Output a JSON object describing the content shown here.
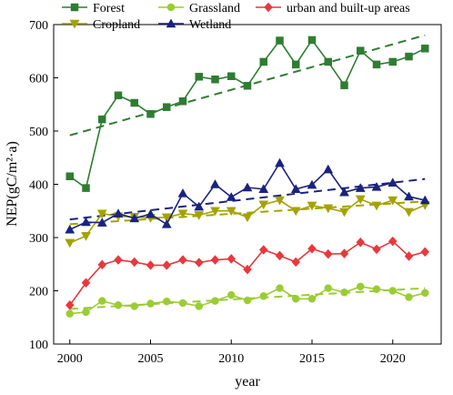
{
  "chart_data": {
    "type": "line",
    "title": "",
    "xlabel": "year",
    "ylabel": "NEP(gC/m²·a)",
    "xlim": [
      1999,
      2023
    ],
    "ylim": [
      100,
      700
    ],
    "xticks": [
      2000,
      2005,
      2010,
      2015,
      2020
    ],
    "yticks": [
      100,
      200,
      300,
      400,
      500,
      600,
      700
    ],
    "legend_position": "top, inside plot area",
    "x": [
      2000,
      2001,
      2002,
      2003,
      2004,
      2005,
      2006,
      2007,
      2008,
      2009,
      2010,
      2011,
      2012,
      2013,
      2014,
      2015,
      2016,
      2017,
      2018,
      2019,
      2020,
      2021,
      2022
    ],
    "series": [
      {
        "name": "Forest",
        "color": "#2e7d32",
        "marker": "square",
        "values": [
          415,
          393,
          522,
          567,
          553,
          532,
          545,
          556,
          602,
          597,
          603,
          585,
          630,
          670,
          625,
          671,
          630,
          586,
          651,
          625,
          630,
          640,
          655
        ],
        "trend": [
          492,
          680
        ]
      },
      {
        "name": "Grassland",
        "color": "#9acd32",
        "marker": "circle",
        "values": [
          157,
          160,
          181,
          173,
          171,
          176,
          180,
          177,
          171,
          181,
          192,
          182,
          190,
          205,
          185,
          185,
          205,
          197,
          208,
          203,
          200,
          188,
          196
        ],
        "trend": [
          166,
          205
        ]
      },
      {
        "name": "urban and built-up areas",
        "color": "#e8383d",
        "marker": "diamond",
        "values": [
          173,
          215,
          249,
          258,
          254,
          248,
          248,
          258,
          253,
          258,
          260,
          240,
          277,
          266,
          254,
          279,
          269,
          270,
          291,
          278,
          293,
          265,
          273
        ],
        "trend": []
      },
      {
        "name": "Cropland",
        "color": "#a3a300",
        "marker": "triangle-down",
        "values": [
          290,
          303,
          345,
          340,
          339,
          337,
          338,
          345,
          342,
          350,
          350,
          338,
          362,
          370,
          350,
          360,
          355,
          348,
          372,
          360,
          370,
          348,
          361
        ],
        "trend": [
          325,
          368
        ]
      },
      {
        "name": "Wetland",
        "color": "#1a237e",
        "marker": "triangle-up",
        "values": [
          315,
          329,
          328,
          345,
          336,
          344,
          325,
          383,
          358,
          400,
          376,
          394,
          391,
          440,
          391,
          399,
          428,
          385,
          393,
          395,
          403,
          377,
          370
        ],
        "trend": [
          334,
          410
        ]
      }
    ]
  }
}
